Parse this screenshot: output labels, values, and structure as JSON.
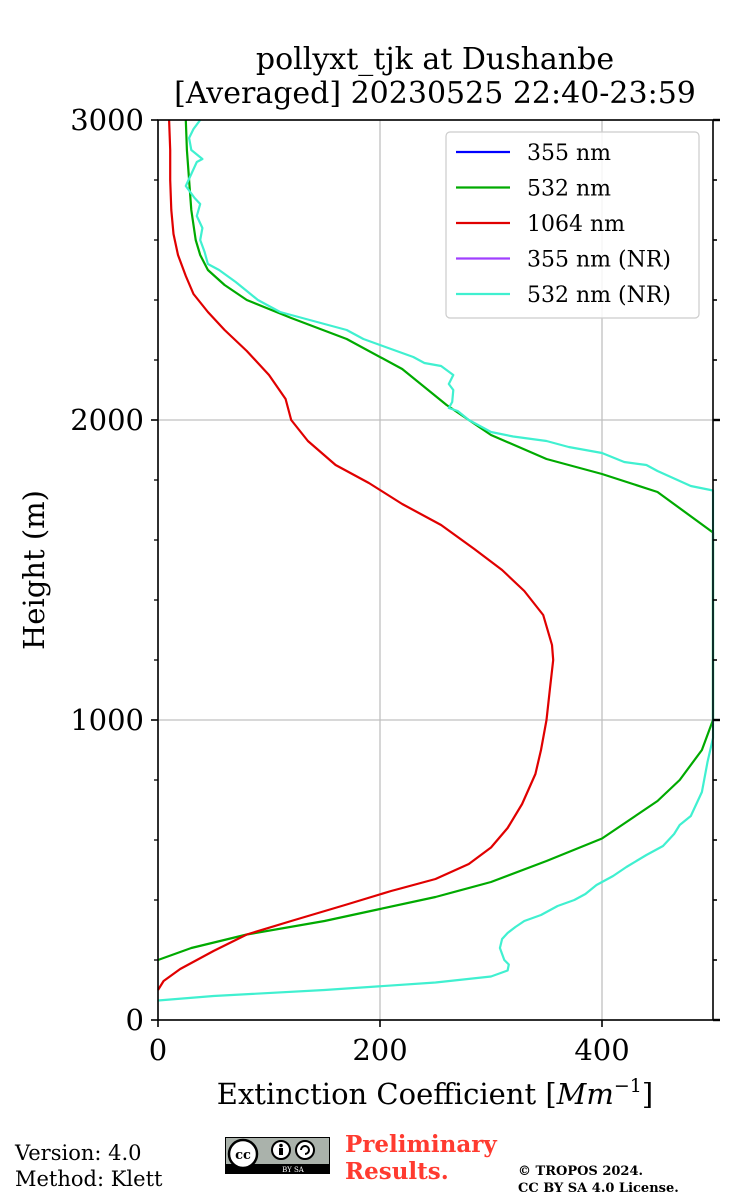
{
  "header": {
    "title_line1": "pollyxt_tjk at Dushanbe",
    "title_line2": "[Averaged] 20230525 22:40-23:59"
  },
  "footer": {
    "version": "Version: 4.0",
    "method": "Method: Klett",
    "preliminary_line1": "Preliminary",
    "preliminary_line2": "Results.",
    "copyright_line1": "© TROPOS 2024.",
    "copyright_line2": "CC BY SA 4.0 License.",
    "license_badge_text": "BY SA"
  },
  "colors": {
    "355": "#0000ff",
    "532": "#00aa00",
    "1064": "#e00000",
    "355NR": "#a040ff",
    "532NR": "#40f0d0",
    "grid": "#c0c0c0",
    "preliminary": "#ff3b30"
  },
  "chart_data": {
    "type": "line",
    "xlabel": "Extinction Coefficient [Mm⁻¹]",
    "ylabel": "Height (m)",
    "xlim": [
      0,
      500
    ],
    "ylim": [
      0,
      3000
    ],
    "xticks": [
      0,
      200,
      400
    ],
    "yticks": [
      0,
      1000,
      2000,
      3000
    ],
    "grid": true,
    "legend_position": "top-right",
    "series": [
      {
        "name": "355 nm",
        "color": "#0000ff",
        "points": []
      },
      {
        "name": "532 nm",
        "color": "#00aa00",
        "points": [
          [
            0,
            200
          ],
          [
            30,
            240
          ],
          [
            80,
            285
          ],
          [
            150,
            330
          ],
          [
            200,
            370
          ],
          [
            250,
            410
          ],
          [
            300,
            460
          ],
          [
            350,
            530
          ],
          [
            400,
            605
          ],
          [
            450,
            730
          ],
          [
            470,
            800
          ],
          [
            490,
            900
          ],
          [
            500,
            1000
          ],
          [
            500,
            1625
          ],
          [
            450,
            1760
          ],
          [
            400,
            1820
          ],
          [
            350,
            1870
          ],
          [
            300,
            1950
          ],
          [
            260,
            2050
          ],
          [
            220,
            2170
          ],
          [
            170,
            2270
          ],
          [
            120,
            2340
          ],
          [
            80,
            2400
          ],
          [
            60,
            2450
          ],
          [
            45,
            2500
          ],
          [
            38,
            2550
          ],
          [
            34,
            2600
          ],
          [
            30,
            2700
          ],
          [
            28,
            2800
          ],
          [
            26,
            2900
          ],
          [
            25,
            3000
          ]
        ]
      },
      {
        "name": "1064 nm",
        "color": "#e00000",
        "points": [
          [
            0,
            100
          ],
          [
            5,
            130
          ],
          [
            20,
            170
          ],
          [
            50,
            230
          ],
          [
            80,
            285
          ],
          [
            120,
            330
          ],
          [
            170,
            385
          ],
          [
            210,
            430
          ],
          [
            250,
            470
          ],
          [
            280,
            520
          ],
          [
            300,
            575
          ],
          [
            315,
            640
          ],
          [
            328,
            720
          ],
          [
            340,
            820
          ],
          [
            345,
            900
          ],
          [
            350,
            1000
          ],
          [
            353,
            1100
          ],
          [
            356,
            1200
          ],
          [
            355,
            1250
          ],
          [
            347,
            1350
          ],
          [
            330,
            1430
          ],
          [
            310,
            1500
          ],
          [
            285,
            1570
          ],
          [
            255,
            1650
          ],
          [
            220,
            1720
          ],
          [
            190,
            1790
          ],
          [
            160,
            1850
          ],
          [
            135,
            1930
          ],
          [
            120,
            2000
          ],
          [
            115,
            2070
          ],
          [
            100,
            2150
          ],
          [
            80,
            2230
          ],
          [
            60,
            2300
          ],
          [
            45,
            2360
          ],
          [
            32,
            2420
          ],
          [
            25,
            2480
          ],
          [
            18,
            2550
          ],
          [
            14,
            2620
          ],
          [
            12,
            2700
          ],
          [
            11,
            2800
          ],
          [
            11,
            2900
          ],
          [
            10,
            3000
          ]
        ]
      },
      {
        "name": "355 nm (NR)",
        "color": "#a040ff",
        "points": []
      },
      {
        "name": "532 nm (NR)",
        "color": "#40f0d0",
        "points": [
          [
            0,
            65
          ],
          [
            50,
            80
          ],
          [
            150,
            100
          ],
          [
            250,
            125
          ],
          [
            300,
            145
          ],
          [
            315,
            165
          ],
          [
            316,
            185
          ],
          [
            312,
            200
          ],
          [
            308,
            240
          ],
          [
            310,
            270
          ],
          [
            315,
            290
          ],
          [
            322,
            310
          ],
          [
            330,
            330
          ],
          [
            345,
            350
          ],
          [
            360,
            380
          ],
          [
            375,
            400
          ],
          [
            385,
            420
          ],
          [
            395,
            450
          ],
          [
            410,
            480
          ],
          [
            422,
            510
          ],
          [
            440,
            550
          ],
          [
            455,
            580
          ],
          [
            465,
            620
          ],
          [
            470,
            650
          ],
          [
            480,
            680
          ],
          [
            490,
            760
          ],
          [
            495,
            860
          ],
          [
            500,
            940
          ],
          [
            500,
            1765
          ],
          [
            480,
            1780
          ],
          [
            450,
            1830
          ],
          [
            440,
            1850
          ],
          [
            420,
            1860
          ],
          [
            400,
            1890
          ],
          [
            370,
            1910
          ],
          [
            350,
            1930
          ],
          [
            320,
            1945
          ],
          [
            300,
            1960
          ],
          [
            280,
            2000
          ],
          [
            270,
            2030
          ],
          [
            262,
            2040
          ],
          [
            265,
            2060
          ],
          [
            266,
            2100
          ],
          [
            262,
            2120
          ],
          [
            266,
            2150
          ],
          [
            255,
            2180
          ],
          [
            240,
            2190
          ],
          [
            230,
            2210
          ],
          [
            215,
            2230
          ],
          [
            200,
            2250
          ],
          [
            185,
            2270
          ],
          [
            170,
            2300
          ],
          [
            150,
            2320
          ],
          [
            130,
            2340
          ],
          [
            110,
            2360
          ],
          [
            90,
            2400
          ],
          [
            80,
            2430
          ],
          [
            70,
            2460
          ],
          [
            55,
            2500
          ],
          [
            45,
            2520
          ],
          [
            42,
            2560
          ],
          [
            38,
            2600
          ],
          [
            40,
            2640
          ],
          [
            35,
            2680
          ],
          [
            38,
            2720
          ],
          [
            33,
            2740
          ],
          [
            25,
            2780
          ],
          [
            30,
            2820
          ],
          [
            35,
            2860
          ],
          [
            40,
            2870
          ],
          [
            30,
            2900
          ],
          [
            28,
            2940
          ],
          [
            32,
            2970
          ],
          [
            38,
            3000
          ]
        ]
      }
    ]
  }
}
